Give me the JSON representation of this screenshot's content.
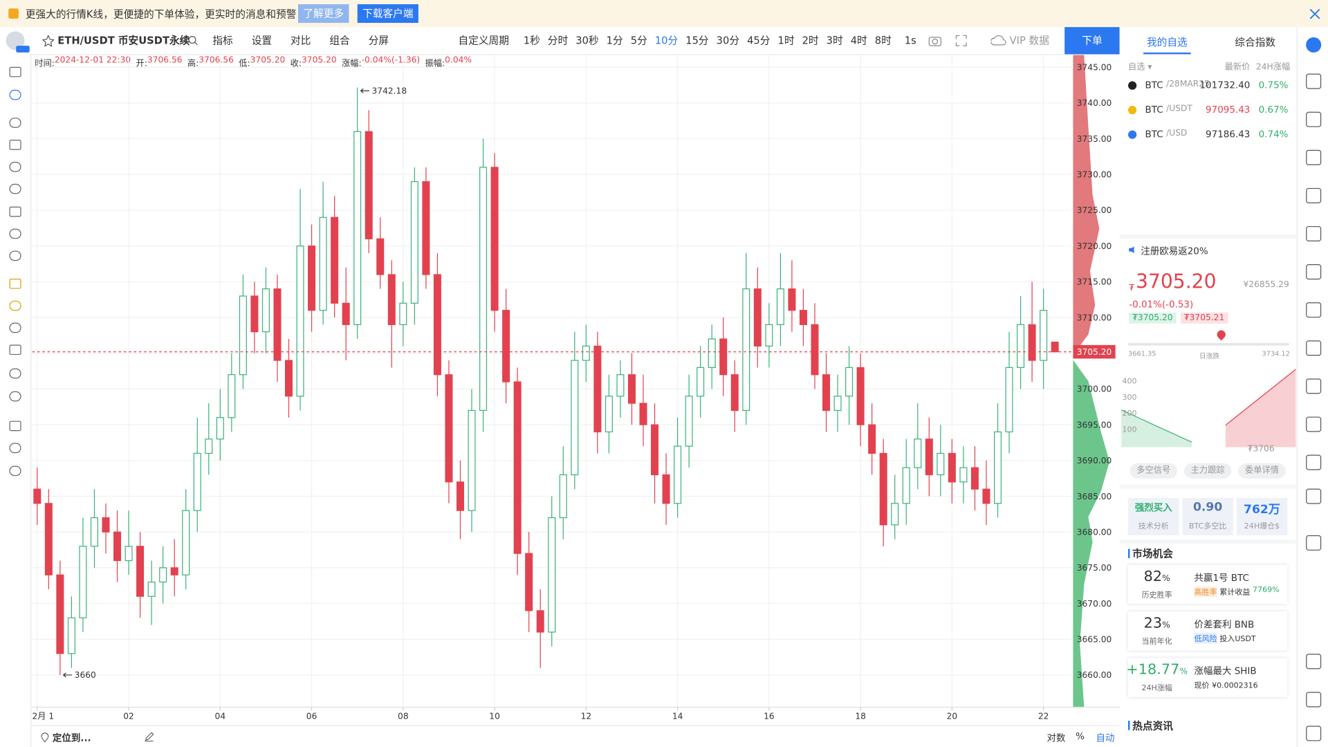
{
  "banner": {
    "text": "更强大的行情K线，更便捷的下单体验，更实时的消息和预警",
    "more": "了解更多",
    "download": "下载客户端"
  },
  "toolbar": {
    "symbol": "ETH/USDT 币安USDT永续",
    "tools": [
      "指标",
      "设置",
      "对比",
      "组合",
      "分屏"
    ],
    "custom": "自定义周期",
    "periods": [
      "1秒",
      "分时",
      "30秒",
      "1分",
      "5分",
      "10分",
      "15分",
      "30分",
      "45分",
      "1时",
      "2时",
      "3时",
      "4时",
      "8时"
    ],
    "active_period": 5,
    "seconds": "1s",
    "vip": "VIP 数据",
    "order": "下单"
  },
  "header": [
    {
      "label": "时间:",
      "value": "2024-12-01 22:30"
    },
    {
      "label": "开:",
      "value": "3706.56"
    },
    {
      "label": "高:",
      "value": "3706.56"
    },
    {
      "label": "低:",
      "value": "3705.20"
    },
    {
      "label": "收:",
      "value": "3705.20"
    },
    {
      "label": "涨幅:",
      "value": "-0.04%(-1.36)"
    },
    {
      "label": "振幅:",
      "value": "0.04%"
    }
  ],
  "bottom": {
    "locate": "定位到...",
    "log": "对数",
    "pct": "%",
    "auto": "自动"
  },
  "sidebar": {
    "tabs": [
      "我的自选",
      "综合指数"
    ],
    "list_head": [
      "自选 ▾",
      "最新价",
      "24H涨幅"
    ],
    "rows": [
      {
        "base": "BTC",
        "quote": "/28MAR25",
        "price": "101732.40",
        "change": "0.75%"
      },
      {
        "base": "BTC",
        "quote": "/USDT",
        "price": "97095.43",
        "change": "0.67%"
      },
      {
        "base": "BTC",
        "quote": "/USD",
        "price": "97186.43",
        "change": "0.74%"
      }
    ],
    "promo": "注册欧易返20%",
    "currency": "₮",
    "price": "3705.20",
    "cny": "¥26855.29",
    "change": "-0.01%(-0.53)",
    "bid": "₮3705.20",
    "ask": "₮3705.21",
    "range_low": "3661.35",
    "range_label": "日涨跌",
    "range_high": "3734.12",
    "depth_ticks": [
      "400",
      "300",
      "200",
      "100"
    ],
    "depth_price": "₮3706",
    "buttons": [
      "多空信号",
      "主力跟踪",
      "委单详情"
    ],
    "cards": [
      {
        "value": "强烈买入",
        "label": "技术分析"
      },
      {
        "value": "0.90",
        "label": "BTC多空比"
      },
      {
        "value": "762万",
        "label": "24H爆仓$"
      }
    ],
    "market_title": "市场机会",
    "opps": [
      {
        "big": "82",
        "unit": "%",
        "sub": "历史胜率",
        "name": "共赢1号 BTC",
        "tag": "高胜率",
        "desc": "累计收益",
        "extra": "7769%"
      },
      {
        "big": "23",
        "unit": "%",
        "sub": "当前年化",
        "name": "价差套利 BNB",
        "tag": "低风险",
        "desc": "投入USDT",
        "extra": ""
      },
      {
        "big": "+18.77",
        "unit": "%",
        "sub": "24H涨幅",
        "name": "涨幅最大 SHIB",
        "tag": "",
        "desc": "现价 ¥0.0002316",
        "extra": ""
      }
    ],
    "news_title": "热点资讯"
  },
  "chart_data": {
    "type": "candlestick",
    "up_color": "#3bb27a",
    "down_color": "#e2424f",
    "grid": true,
    "xlim": [
      -0.11,
      22.61
    ],
    "ylim": [
      3655.5,
      3746.7
    ],
    "xticks": [
      {
        "value": 0,
        "label": "2月 1"
      },
      {
        "value": 2,
        "label": "02"
      },
      {
        "value": 4,
        "label": "04"
      },
      {
        "value": 6,
        "label": "06"
      },
      {
        "value": 8,
        "label": "08"
      },
      {
        "value": 10,
        "label": "10"
      },
      {
        "value": 12,
        "label": "12"
      },
      {
        "value": 14,
        "label": "14"
      },
      {
        "value": 16,
        "label": "16"
      },
      {
        "value": 18,
        "label": "18"
      },
      {
        "value": 20,
        "label": "20"
      },
      {
        "value": 22,
        "label": "22"
      }
    ],
    "yticks": [
      {
        "value": 3660,
        "label": "3660.00"
      },
      {
        "value": 3665,
        "label": "3665.00"
      },
      {
        "value": 3670,
        "label": "3670.00"
      },
      {
        "value": 3675,
        "label": "3675.00"
      },
      {
        "value": 3680,
        "label": "3680.00"
      },
      {
        "value": 3685,
        "label": "3685.00"
      },
      {
        "value": 3690,
        "label": "3690.00"
      },
      {
        "value": 3695,
        "label": "3695.00"
      },
      {
        "value": 3700,
        "label": "3700.00"
      },
      {
        "value": 3705,
        "label": "3705.00"
      },
      {
        "value": 3710,
        "label": "3710.00"
      },
      {
        "value": 3715,
        "label": "3715.00"
      },
      {
        "value": 3720,
        "label": "3720.00"
      },
      {
        "value": 3725,
        "label": "3725.00"
      },
      {
        "value": 3730,
        "label": "3730.00"
      },
      {
        "value": 3735,
        "label": "3735.00"
      },
      {
        "value": 3740,
        "label": "3740.00"
      },
      {
        "value": 3745,
        "label": "3745.00"
      }
    ],
    "price_label": "3705.20",
    "x": [
      0,
      0.25,
      0.5,
      0.75,
      1,
      1.25,
      1.5,
      1.75,
      2,
      2.25,
      2.5,
      2.75,
      3,
      3.25,
      3.5,
      3.75,
      4,
      4.25,
      4.5,
      4.75,
      5,
      5.25,
      5.5,
      5.75,
      6,
      6.25,
      6.5,
      6.75,
      7,
      7.25,
      7.5,
      7.75,
      8,
      8.25,
      8.5,
      8.75,
      9,
      9.25,
      9.5,
      9.75,
      10,
      10.25,
      10.5,
      10.75,
      11,
      11.25,
      11.5,
      11.75,
      12,
      12.25,
      12.5,
      12.75,
      13,
      13.25,
      13.5,
      13.75,
      14,
      14.25,
      14.5,
      14.75,
      15,
      15.25,
      15.5,
      15.75,
      16,
      16.25,
      16.5,
      16.75,
      17,
      17.25,
      17.5,
      17.75,
      18,
      18.25,
      18.5,
      18.75,
      19,
      19.25,
      19.5,
      19.75,
      20,
      20.25,
      20.5,
      20.75,
      21,
      21.25,
      21.5,
      21.75,
      22,
      22.25
    ],
    "open": [
      3686,
      3684,
      3674,
      3663,
      3668,
      3678,
      3682,
      3680,
      3676,
      3678,
      3671,
      3673,
      3675,
      3674,
      3683,
      3691,
      3693,
      3696,
      3702,
      3713,
      3708,
      3714,
      3704,
      3699,
      3720,
      3711,
      3724,
      3712,
      3709,
      3736,
      3721,
      3716,
      3709,
      3712,
      3729,
      3716,
      3702,
      3687,
      3683,
      3697,
      3731,
      3711,
      3701,
      3677,
      3669,
      3666,
      3682,
      3688,
      3704,
      3706,
      3694,
      3699,
      3702,
      3698,
      3695,
      3688,
      3684,
      3692,
      3699,
      3703,
      3707,
      3702,
      3697,
      3714,
      3706,
      3709,
      3714,
      3711,
      3709,
      3702,
      3697,
      3699,
      3703,
      3695,
      3691,
      3681,
      3684,
      3689,
      3693,
      3688,
      3691,
      3687,
      3689,
      3686,
      3684,
      3694,
      3703,
      3709,
      3704,
      3706.56
    ],
    "high": [
      3689,
      3686,
      3676,
      3671,
      3682,
      3686,
      3684,
      3683,
      3683,
      3680,
      3676,
      3678,
      3679,
      3686,
      3696,
      3698,
      3700,
      3705,
      3716,
      3715,
      3717,
      3716,
      3707,
      3728,
      3723,
      3729,
      3727,
      3717,
      3742.18,
      3739,
      3724,
      3718,
      3715,
      3731,
      3731,
      3719,
      3704,
      3690,
      3700,
      3735,
      3733,
      3714,
      3703,
      3680,
      3672,
      3685,
      3692,
      3708,
      3709,
      3708,
      3702,
      3704,
      3705,
      3702,
      3698,
      3691,
      3696,
      3702,
      3706,
      3709,
      3710,
      3704,
      3719,
      3717,
      3712,
      3719,
      3718,
      3714,
      3712,
      3705,
      3702,
      3706,
      3705,
      3698,
      3693,
      3688,
      3693,
      3698,
      3696,
      3695,
      3693,
      3692,
      3692,
      3690,
      3698,
      3708,
      3713,
      3715,
      3714,
      3706.56
    ],
    "low": [
      3681,
      3672,
      3660,
      3661,
      3666,
      3675,
      3677,
      3673,
      3674,
      3668,
      3667,
      3670,
      3671,
      3672,
      3680,
      3688,
      3690,
      3694,
      3700,
      3705,
      3705,
      3701,
      3696,
      3697,
      3708,
      3709,
      3710,
      3704,
      3707,
      3719,
      3714,
      3703,
      3706,
      3709,
      3714,
      3699,
      3684,
      3679,
      3680,
      3694,
      3708,
      3698,
      3674,
      3666,
      3661,
      3664,
      3679,
      3686,
      3701,
      3691,
      3691,
      3696,
      3695,
      3692,
      3684,
      3681,
      3682,
      3689,
      3696,
      3700,
      3699,
      3694,
      3695,
      3703,
      3703,
      3706,
      3708,
      3706,
      3700,
      3694,
      3694,
      3695,
      3692,
      3688,
      3678,
      3679,
      3681,
      3686,
      3685,
      3685,
      3684,
      3684,
      3683,
      3681,
      3682,
      3691,
      3700,
      3701,
      3700,
      3705.2
    ],
    "close": [
      3684,
      3674,
      3663,
      3668,
      3678,
      3682,
      3680,
      3676,
      3678,
      3671,
      3673,
      3675,
      3674,
      3683,
      3691,
      3693,
      3696,
      3702,
      3713,
      3708,
      3714,
      3704,
      3699,
      3720,
      3711,
      3724,
      3712,
      3709,
      3736,
      3721,
      3716,
      3709,
      3712,
      3729,
      3716,
      3702,
      3687,
      3683,
      3697,
      3731,
      3711,
      3701,
      3677,
      3669,
      3666,
      3682,
      3688,
      3704,
      3706,
      3694,
      3699,
      3702,
      3698,
      3695,
      3688,
      3684,
      3692,
      3699,
      3703,
      3707,
      3702,
      3697,
      3714,
      3706,
      3709,
      3714,
      3711,
      3709,
      3702,
      3697,
      3699,
      3703,
      3695,
      3691,
      3681,
      3684,
      3689,
      3693,
      3688,
      3691,
      3687,
      3689,
      3686,
      3684,
      3694,
      3703,
      3709,
      3704,
      3711,
      3705.2
    ]
  }
}
